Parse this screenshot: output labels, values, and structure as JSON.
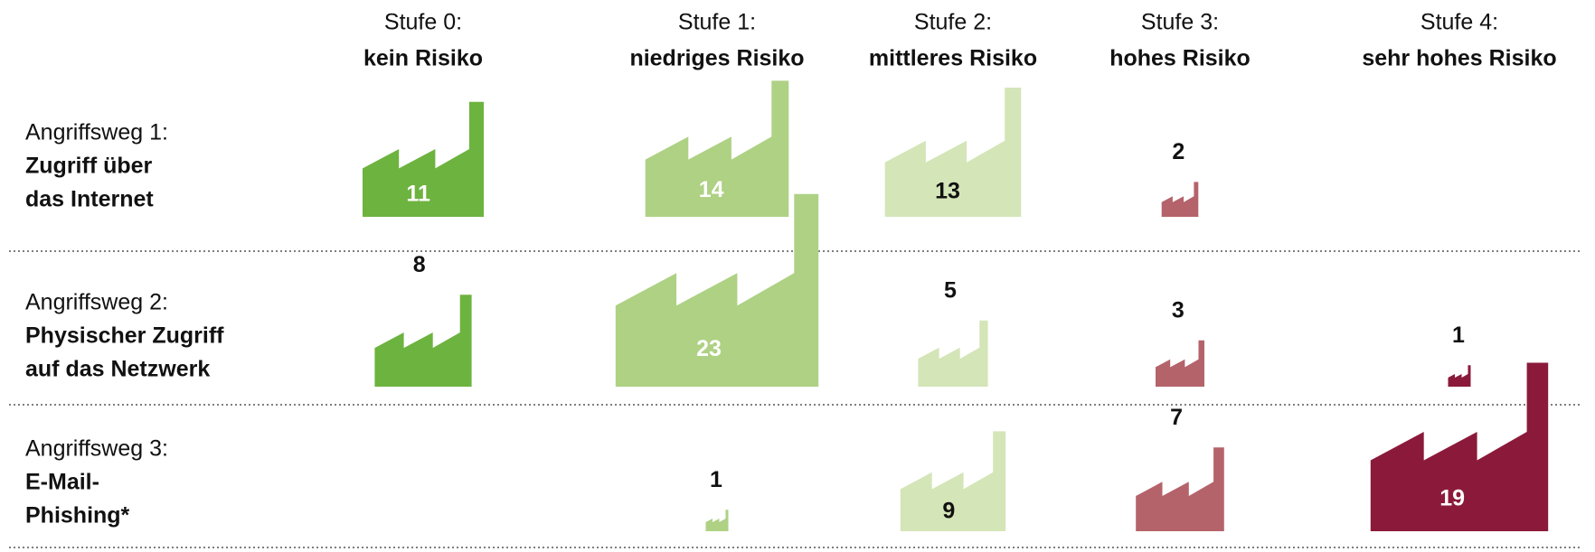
{
  "chart_data": {
    "type": "icon-matrix",
    "columns": [
      {
        "label": "Stufe 0:",
        "name": "kein Risiko",
        "color": "#6db33f"
      },
      {
        "label": "Stufe 1:",
        "name": "niedriges Risiko",
        "color": "#aed184"
      },
      {
        "label": "Stufe 2:",
        "name": "mittleres Risiko",
        "color": "#d4e5b8"
      },
      {
        "label": "Stufe 3:",
        "name": "hohes Risiko",
        "color": "#b5636b"
      },
      {
        "label": "Stufe 4:",
        "name": "sehr hohes Risiko",
        "color": "#8b1a3a"
      }
    ],
    "rows": [
      {
        "label": "Angriffsweg 1:",
        "name": [
          "Zugriff über",
          "das Internet"
        ],
        "values": [
          11,
          14,
          13,
          2,
          null
        ]
      },
      {
        "label": "Angriffsweg 2:",
        "name": [
          "Physischer Zugriff",
          "auf das Netzwerk"
        ],
        "values": [
          8,
          23,
          5,
          3,
          1
        ]
      },
      {
        "label": "Angriffsweg 3:",
        "name": [
          "E-Mail-",
          "Phishing*"
        ],
        "values": [
          null,
          1,
          9,
          7,
          19
        ]
      }
    ]
  }
}
